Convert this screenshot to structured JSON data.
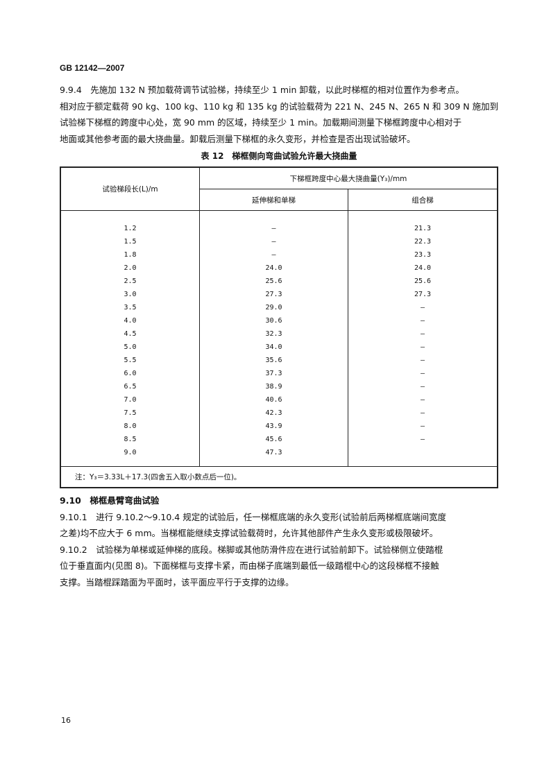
{
  "header": "GB 12142—2007",
  "para_994": [
    "9.9.4　先施加 132 N 预加载荷调节试验梯，持续至少 1 min 卸载，以此时梯框的相对位置作为参考点。",
    "相对应于额定载荷 90 kg、100 kg、110 kg 和 135 kg 的试验载荷为 221 N、245 N、265 N 和 309 N 施加到",
    "试验梯下梯框的跨度中心处，宽 90 mm 的区域，持续至少 1 min。加载期间测量下梯框跨度中心相对于",
    "地面或其他参考面的最大挠曲量。卸载后测量下梯框的永久变形，并检查是否出现试验破坏。"
  ],
  "table": {
    "caption": "表 12　梯框侧向弯曲试验允许最大挠曲量",
    "col_length": "试验梯段长(L)/m",
    "col_group": "下梯框跨度中心最大挠曲量(Y₃)/mm",
    "col_ext": "延伸梯和单梯",
    "col_comb": "组合梯",
    "rows": [
      [
        "1.2",
        "—",
        "21.3"
      ],
      [
        "1.5",
        "—",
        "22.3"
      ],
      [
        "1.8",
        "—",
        "23.3"
      ],
      [
        "2.0",
        "24.0",
        "24.0"
      ],
      [
        "2.5",
        "25.6",
        "25.6"
      ],
      [
        "3.0",
        "27.3",
        "27.3"
      ],
      [
        "3.5",
        "29.0",
        "—"
      ],
      [
        "4.0",
        "30.6",
        "—"
      ],
      [
        "4.5",
        "32.3",
        "—"
      ],
      [
        "5.0",
        "34.0",
        "—"
      ],
      [
        "5.5",
        "35.6",
        "—"
      ],
      [
        "6.0",
        "37.3",
        "—"
      ],
      [
        "6.5",
        "38.9",
        "—"
      ],
      [
        "7.0",
        "40.6",
        "—"
      ],
      [
        "7.5",
        "42.3",
        "—"
      ],
      [
        "8.0",
        "43.9",
        "—"
      ],
      [
        "8.5",
        "45.6",
        "—"
      ],
      [
        "9.0",
        "47.3",
        ""
      ]
    ],
    "note": "注：Y₃＝3.33L＋17.3(四舍五入取小数点后一位)。"
  },
  "sec_910": "9.10　梯框悬臂弯曲试验",
  "para_9101": [
    "9.10.1　进行 9.10.2～9.10.4 规定的试验后，任一梯框底端的永久变形(试验前后两梯框底端间宽度",
    "之差)均不应大于 6 mm。当梯框能继续支撑试验载荷时，允许其他部件产生永久变形或极限破坏。"
  ],
  "para_9102": [
    "9.10.2　试验梯为单梯或延伸梯的底段。梯脚或其他防滑件应在进行试验前卸下。试验梯侧立使踏棍",
    "位于垂直面内(见图 8)。下面梯框与支撑卡紧，而由梯子底端到最低一级踏棍中心的这段梯框不接触",
    "支撑。当踏棍踩踏面为平面时，该平面应平行于支撑的边缘。"
  ],
  "page_number": "16"
}
